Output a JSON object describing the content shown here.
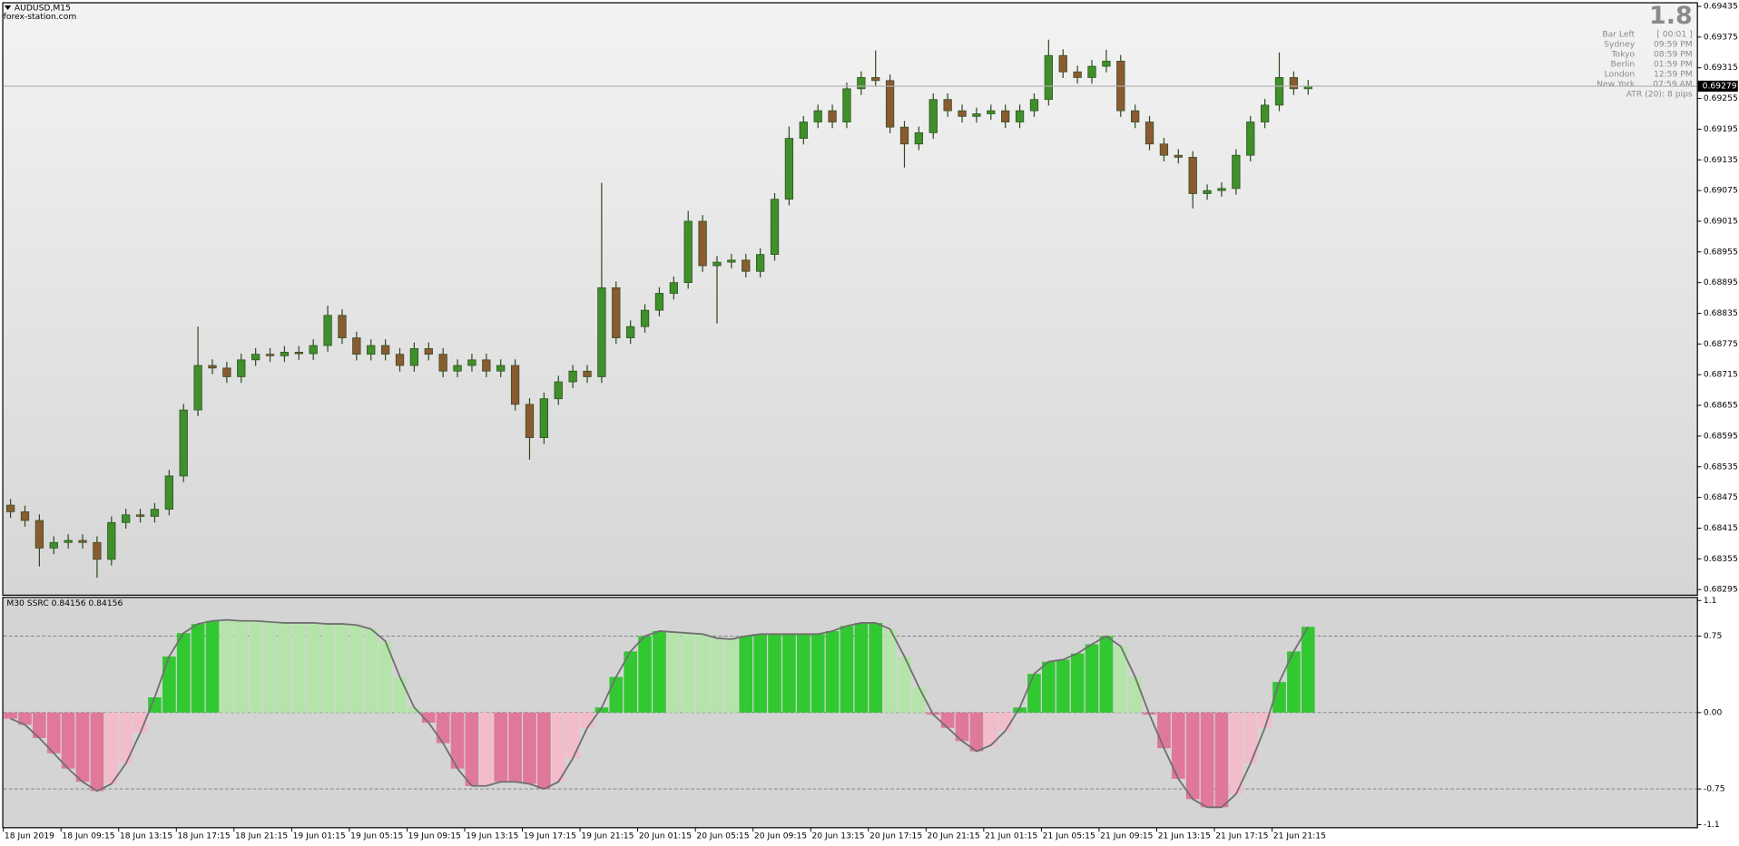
{
  "window": {
    "symbol": "AUDUSD,M15",
    "watermark": "forex-station.com"
  },
  "info_panel": {
    "spread": 1.8,
    "rows": [
      [
        "Bar Left",
        "[ 00:01 ]"
      ],
      [
        "Sydney",
        "09:59 PM"
      ],
      [
        "Tokyo",
        "08:59 PM"
      ],
      [
        "Berlin",
        "01:59 PM"
      ],
      [
        "London",
        "12:59 PM"
      ],
      [
        "New York",
        "07:59 AM"
      ]
    ],
    "atr": "ATR (20): 8 pips"
  },
  "chart_data": [
    {
      "type": "candlestick",
      "categories": [
        "18 Jun 2019",
        null,
        null,
        null,
        "18 Jun 09:15",
        null,
        null,
        null,
        "18 Jun 13:15",
        null,
        null,
        null,
        "18 Jun 17:15",
        null,
        null,
        null,
        "18 Jun 21:15",
        null,
        null,
        null,
        "19 Jun 01:15",
        null,
        null,
        null,
        "19 Jun 05:15",
        null,
        null,
        null,
        "19 Jun 09:15",
        null,
        null,
        null,
        "19 Jun 13:15",
        null,
        null,
        null,
        "19 Jun 17:15",
        null,
        null,
        null,
        "19 Jun 21:15",
        null,
        null,
        null,
        "20 Jun 01:15",
        null,
        null,
        null,
        "20 Jun 05:15",
        null,
        null,
        null,
        "20 Jun 09:15",
        null,
        null,
        null,
        "20 Jun 13:15",
        null,
        null,
        null,
        "20 Jun 17:15",
        null,
        null,
        null,
        "20 Jun 21:15",
        null,
        null,
        null,
        "21 Jun 01:15",
        null,
        null,
        null,
        "21 Jun 05:15",
        null,
        null,
        null,
        "21 Jun 09:15",
        null,
        null,
        null,
        "21 Jun 13:15",
        null,
        null,
        null,
        "21 Jun 17:15",
        null,
        null,
        null,
        "21 Jun 21:15",
        null,
        null
      ],
      "open": [
        0.6846,
        0.68447,
        0.6843,
        0.68376,
        0.68387,
        0.68391,
        0.68387,
        0.68354,
        0.68426,
        0.68441,
        0.68438,
        0.68452,
        0.68517,
        0.68646,
        0.68733,
        0.68728,
        0.68711,
        0.68744,
        0.68755,
        0.68752,
        0.68759,
        0.68756,
        0.68772,
        0.68831,
        0.68787,
        0.68755,
        0.68772,
        0.68755,
        0.68733,
        0.68766,
        0.68755,
        0.68722,
        0.68733,
        0.68744,
        0.68722,
        0.68733,
        0.68657,
        0.68592,
        0.68668,
        0.68701,
        0.68722,
        0.68711,
        0.68885,
        0.68787,
        0.68809,
        0.68841,
        0.68874,
        0.68895,
        0.69015,
        0.68928,
        0.68935,
        0.68939,
        0.68917,
        0.6895,
        0.69058,
        0.69177,
        0.69209,
        0.69231,
        0.69209,
        0.69274,
        0.69296,
        0.6929,
        0.69199,
        0.69166,
        0.69188,
        0.69253,
        0.69231,
        0.6922,
        0.69225,
        0.69231,
        0.69209,
        0.69231,
        0.69253,
        0.69339,
        0.69307,
        0.69296,
        0.69318,
        0.69328,
        0.69231,
        0.69209,
        0.69166,
        0.69144,
        0.6914,
        0.69069,
        0.69075,
        0.69079,
        0.69144,
        0.69209,
        0.69242,
        0.69296,
        0.69274
      ],
      "high": [
        0.68472,
        0.68459,
        0.68442,
        0.68399,
        0.68403,
        0.68403,
        0.68399,
        0.68438,
        0.68453,
        0.68453,
        0.68464,
        0.68529,
        0.68658,
        0.68809,
        0.68745,
        0.6874,
        0.68756,
        0.68767,
        0.68767,
        0.68771,
        0.68771,
        0.68784,
        0.6885,
        0.68843,
        0.68799,
        0.68784,
        0.68784,
        0.68767,
        0.68778,
        0.68778,
        0.68767,
        0.68745,
        0.68756,
        0.68756,
        0.68745,
        0.68745,
        0.68669,
        0.6868,
        0.68713,
        0.68734,
        0.68734,
        0.6909,
        0.68897,
        0.68821,
        0.68853,
        0.68886,
        0.68907,
        0.69035,
        0.69027,
        0.68947,
        0.68951,
        0.68951,
        0.68962,
        0.6907,
        0.692,
        0.69221,
        0.69243,
        0.69243,
        0.69286,
        0.69308,
        0.69349,
        0.69302,
        0.69211,
        0.692,
        0.69265,
        0.69265,
        0.69243,
        0.69237,
        0.69243,
        0.69243,
        0.69243,
        0.69265,
        0.6937,
        0.69351,
        0.69319,
        0.6933,
        0.6935,
        0.6934,
        0.69243,
        0.69221,
        0.69178,
        0.69156,
        0.69152,
        0.69087,
        0.69091,
        0.69156,
        0.69221,
        0.69254,
        0.69345,
        0.69308,
        0.69291
      ],
      "low": [
        0.68435,
        0.68418,
        0.6834,
        0.68364,
        0.68375,
        0.68375,
        0.68318,
        0.68342,
        0.68414,
        0.68426,
        0.68426,
        0.6844,
        0.68505,
        0.68634,
        0.68716,
        0.68699,
        0.68699,
        0.68732,
        0.6874,
        0.6874,
        0.68744,
        0.68744,
        0.6876,
        0.68775,
        0.68743,
        0.68743,
        0.68743,
        0.68721,
        0.68721,
        0.68743,
        0.6871,
        0.6871,
        0.68721,
        0.6871,
        0.6871,
        0.68645,
        0.68549,
        0.6858,
        0.68656,
        0.68689,
        0.68699,
        0.68699,
        0.68775,
        0.68775,
        0.68797,
        0.68829,
        0.68862,
        0.68883,
        0.68916,
        0.68815,
        0.68923,
        0.68905,
        0.68905,
        0.68938,
        0.69046,
        0.69165,
        0.69197,
        0.69197,
        0.69197,
        0.69262,
        0.69278,
        0.69187,
        0.6912,
        0.69154,
        0.69176,
        0.69219,
        0.69208,
        0.69208,
        0.69213,
        0.69197,
        0.69197,
        0.69219,
        0.69241,
        0.69295,
        0.69284,
        0.69284,
        0.69306,
        0.69219,
        0.69197,
        0.69154,
        0.69132,
        0.69128,
        0.6904,
        0.69057,
        0.69063,
        0.69067,
        0.69132,
        0.69197,
        0.6923,
        0.69262,
        0.69262
      ],
      "close": [
        0.68447,
        0.6843,
        0.68376,
        0.68387,
        0.68391,
        0.68387,
        0.68354,
        0.68426,
        0.68441,
        0.68438,
        0.68452,
        0.68517,
        0.68646,
        0.68733,
        0.68728,
        0.68711,
        0.68744,
        0.68755,
        0.68752,
        0.68759,
        0.68756,
        0.68772,
        0.68831,
        0.68787,
        0.68755,
        0.68772,
        0.68755,
        0.68733,
        0.68766,
        0.68755,
        0.68722,
        0.68733,
        0.68744,
        0.68722,
        0.68733,
        0.68657,
        0.68592,
        0.68668,
        0.68701,
        0.68722,
        0.68711,
        0.68885,
        0.68787,
        0.68809,
        0.68841,
        0.68874,
        0.68895,
        0.69015,
        0.68928,
        0.68935,
        0.68939,
        0.68917,
        0.6895,
        0.69058,
        0.69177,
        0.69209,
        0.69231,
        0.69209,
        0.69274,
        0.69296,
        0.6929,
        0.69199,
        0.69166,
        0.69188,
        0.69253,
        0.69231,
        0.6922,
        0.69225,
        0.69231,
        0.69209,
        0.69231,
        0.69253,
        0.69339,
        0.69307,
        0.69296,
        0.69318,
        0.69328,
        0.69231,
        0.69209,
        0.69166,
        0.69144,
        0.6914,
        0.69069,
        0.69075,
        0.69079,
        0.69144,
        0.69209,
        0.69242,
        0.69296,
        0.69274,
        0.69279
      ],
      "up_color": "#3f8f2a",
      "down_color": "#8a5a30",
      "wick_color": "#2d4d22",
      "ylim": [
        0.68285,
        0.69441
      ],
      "yticks": [
        0.69435,
        0.69375,
        0.69315,
        0.69255,
        0.69195,
        0.69135,
        0.69075,
        0.69015,
        0.68955,
        0.68895,
        0.68835,
        0.68775,
        0.68715,
        0.68655,
        0.68595,
        0.68535,
        0.68475,
        0.68415,
        0.68355,
        0.68295
      ],
      "current_price": 0.69279
    },
    {
      "type": "bar",
      "title": "M30 SSRC 0.84156 0.84156",
      "values": [
        -0.06,
        -0.12,
        -0.25,
        -0.4,
        -0.55,
        -0.68,
        -0.77,
        -0.7,
        -0.5,
        -0.2,
        0.15,
        0.55,
        0.78,
        0.87,
        0.9,
        0.91,
        0.9,
        0.9,
        0.89,
        0.88,
        0.88,
        0.88,
        0.87,
        0.87,
        0.86,
        0.82,
        0.7,
        0.35,
        0.05,
        -0.1,
        -0.3,
        -0.55,
        -0.72,
        -0.72,
        -0.68,
        -0.68,
        -0.7,
        -0.75,
        -0.68,
        -0.45,
        -0.15,
        0.05,
        0.35,
        0.6,
        0.75,
        0.8,
        0.79,
        0.78,
        0.77,
        0.73,
        0.72,
        0.75,
        0.77,
        0.77,
        0.77,
        0.77,
        0.77,
        0.8,
        0.85,
        0.88,
        0.88,
        0.82,
        0.55,
        0.25,
        -0.02,
        -0.15,
        -0.28,
        -0.38,
        -0.32,
        -0.18,
        0.05,
        0.38,
        0.5,
        0.52,
        0.58,
        0.67,
        0.75,
        0.65,
        0.35,
        -0.02,
        -0.35,
        -0.65,
        -0.85,
        -0.93,
        -0.93,
        -0.8,
        -0.5,
        -0.15,
        0.3,
        0.6,
        0.84156
      ],
      "colors": [
        "#e0789a",
        "#e0789a",
        "#e0789a",
        "#e0789a",
        "#e0789a",
        "#e0789a",
        "#e0789a",
        "#f2bccb",
        "#f2bccb",
        "#f2bccb",
        "#32c832",
        "#32c832",
        "#32c832",
        "#32c832",
        "#32c832",
        "#b4e4aa",
        "#b4e4aa",
        "#b4e4aa",
        "#b4e4aa",
        "#b4e4aa",
        "#b4e4aa",
        "#b4e4aa",
        "#b4e4aa",
        "#b4e4aa",
        "#b4e4aa",
        "#b4e4aa",
        "#b4e4aa",
        "#b4e4aa",
        "#b4e4aa",
        "#e0789a",
        "#e0789a",
        "#e0789a",
        "#e0789a",
        "#f2bccb",
        "#e0789a",
        "#e0789a",
        "#e0789a",
        "#e0789a",
        "#f2bccb",
        "#f2bccb",
        "#f2bccb",
        "#32c832",
        "#32c832",
        "#32c832",
        "#32c832",
        "#32c832",
        "#b4e4aa",
        "#b4e4aa",
        "#b4e4aa",
        "#b4e4aa",
        "#b4e4aa",
        "#32c832",
        "#32c832",
        "#32c832",
        "#32c832",
        "#32c832",
        "#32c832",
        "#32c832",
        "#32c832",
        "#32c832",
        "#32c832",
        "#b4e4aa",
        "#b4e4aa",
        "#b4e4aa",
        "#e0789a",
        "#e0789a",
        "#e0789a",
        "#e0789a",
        "#f2bccb",
        "#f2bccb",
        "#32c832",
        "#32c832",
        "#32c832",
        "#32c832",
        "#32c832",
        "#32c832",
        "#32c832",
        "#b4e4aa",
        "#b4e4aa",
        "#e0789a",
        "#e0789a",
        "#e0789a",
        "#e0789a",
        "#e0789a",
        "#e0789a",
        "#f2bccb",
        "#f2bccb",
        "#f2bccb",
        "#32c832",
        "#32c832",
        "#32c832"
      ],
      "line_color": "#707070",
      "ylim": [
        -1.125,
        1.125
      ],
      "yticks": [
        1.1,
        0.75,
        {
          "value": 0,
          "label": "0.00"
        },
        -0.75,
        -1.1
      ],
      "levels": [
        0.75,
        0,
        -0.75
      ]
    }
  ]
}
